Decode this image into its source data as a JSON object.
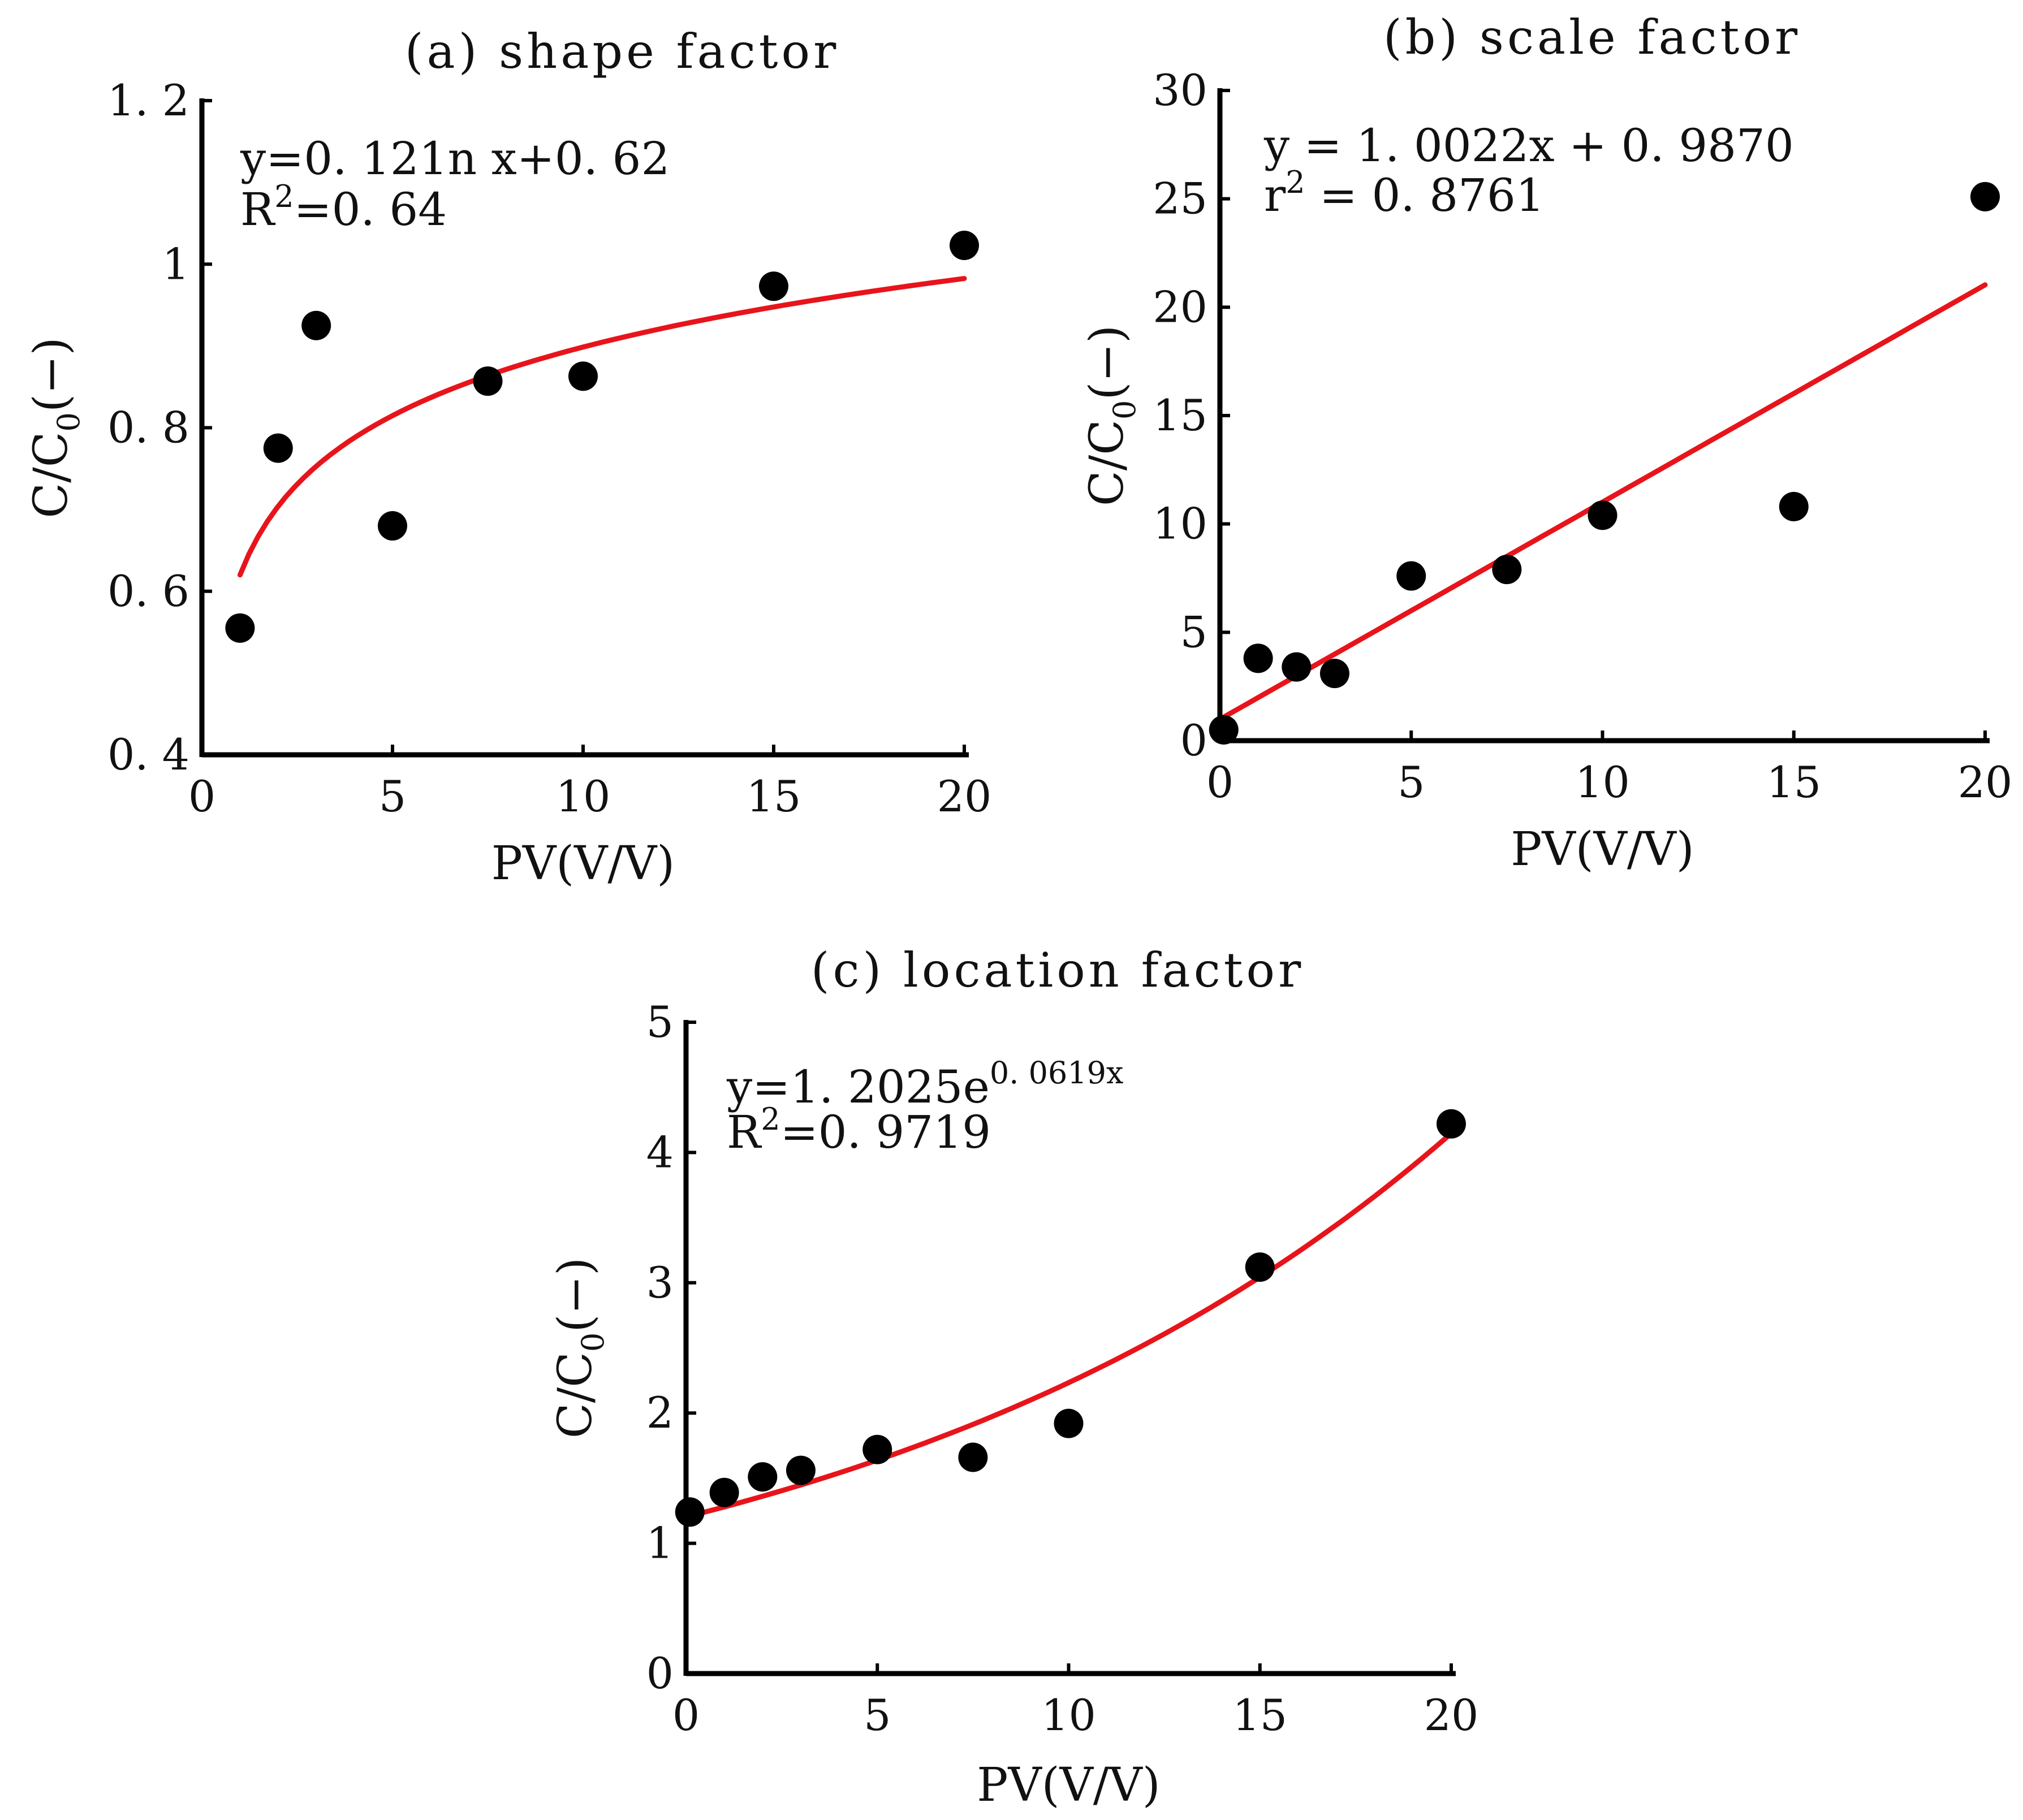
{
  "chart_data": [
    {
      "id": "a",
      "type": "scatter",
      "title": "(a)  shape factor",
      "xlabel": "PV(V/V)",
      "ylabel": "C/C",
      "ylabel_sub": "0",
      "ylabel_suffix": "(−)",
      "xlim": [
        0,
        20
      ],
      "ylim": [
        0.4,
        1.2
      ],
      "xticks": [
        0,
        5,
        10,
        15,
        20
      ],
      "xtick_labels": [
        "0",
        "5",
        "10",
        "15",
        "20"
      ],
      "yticks": [
        0.4,
        0.6,
        0.8,
        1.0,
        1.2
      ],
      "ytick_labels": [
        "0. 4",
        "0. 6",
        "0. 8",
        "1",
        "1. 2"
      ],
      "grid": false,
      "points": [
        {
          "x": 1,
          "y": 0.555
        },
        {
          "x": 2,
          "y": 0.775
        },
        {
          "x": 3,
          "y": 0.925
        },
        {
          "x": 5,
          "y": 0.68
        },
        {
          "x": 7.5,
          "y": 0.857
        },
        {
          "x": 10,
          "y": 0.863
        },
        {
          "x": 15,
          "y": 0.973
        },
        {
          "x": 20,
          "y": 1.023
        }
      ],
      "fit": {
        "kind": "log",
        "a": 0.121,
        "b": 0.62,
        "x_from": 1,
        "x_to": 20,
        "color": "#e8141b"
      },
      "equation_line1": "y=0. 121n x+0. 62",
      "equation_line2_pre": "R",
      "equation_line2_sup": "2",
      "equation_line2_post": "=0. 64"
    },
    {
      "id": "b",
      "type": "scatter",
      "title": "(b)  scale factor",
      "xlabel": "PV(V/V)",
      "ylabel": "C/C",
      "ylabel_sub": "0",
      "ylabel_suffix": "(−)",
      "xlim": [
        0,
        20
      ],
      "ylim": [
        0,
        30
      ],
      "xticks": [
        0,
        5,
        10,
        15,
        20
      ],
      "xtick_labels": [
        "0",
        "5",
        "10",
        "15",
        "20"
      ],
      "yticks": [
        0,
        5,
        10,
        15,
        20,
        25,
        30
      ],
      "ytick_labels": [
        "0",
        "5",
        "10",
        "15",
        "20",
        "25",
        "30"
      ],
      "grid": false,
      "points": [
        {
          "x": 0.1,
          "y": 0.5
        },
        {
          "x": 1,
          "y": 3.8
        },
        {
          "x": 2,
          "y": 3.4
        },
        {
          "x": 3,
          "y": 3.1
        },
        {
          "x": 5,
          "y": 7.6
        },
        {
          "x": 7.5,
          "y": 7.9
        },
        {
          "x": 10,
          "y": 10.4
        },
        {
          "x": 15,
          "y": 10.8
        },
        {
          "x": 20,
          "y": 25.1
        }
      ],
      "fit": {
        "kind": "linear",
        "a": 1.0022,
        "b": 0.987,
        "x_from": 0,
        "x_to": 20,
        "color": "#e8141b"
      },
      "equation_line1": "y = 1. 0022x + 0. 9870",
      "equation_line2_pre": "r",
      "equation_line2_sup": "2",
      "equation_line2_post": " = 0. 8761"
    },
    {
      "id": "c",
      "type": "scatter",
      "title": "(c)  location factor",
      "xlabel": "PV(V/V)",
      "ylabel": "C/C",
      "ylabel_sub": "0",
      "ylabel_suffix": "(−)",
      "xlim": [
        0,
        20
      ],
      "ylim": [
        0,
        5
      ],
      "xticks": [
        0,
        5,
        10,
        15,
        20
      ],
      "xtick_labels": [
        "0",
        "5",
        "10",
        "15",
        "20"
      ],
      "yticks": [
        0,
        1,
        2,
        3,
        4,
        5
      ],
      "ytick_labels": [
        "0",
        "1",
        "2",
        "3",
        "4",
        "5"
      ],
      "grid": false,
      "points": [
        {
          "x": 0.1,
          "y": 1.24
        },
        {
          "x": 1,
          "y": 1.39
        },
        {
          "x": 2,
          "y": 1.51
        },
        {
          "x": 3,
          "y": 1.56
        },
        {
          "x": 5,
          "y": 1.72
        },
        {
          "x": 7.5,
          "y": 1.66
        },
        {
          "x": 10,
          "y": 1.92
        },
        {
          "x": 15,
          "y": 3.12
        },
        {
          "x": 20,
          "y": 4.22
        }
      ],
      "fit": {
        "kind": "exp",
        "a": 1.2025,
        "b": 0.0619,
        "x_from": 0,
        "x_to": 20,
        "color": "#e8141b"
      },
      "equation_line1_pre": "y=1. 2025e",
      "equation_line1_sup": "0. 0619x",
      "equation_line2_pre": "R",
      "equation_line2_sup": "2",
      "equation_line2_post": "=0. 9719"
    }
  ]
}
